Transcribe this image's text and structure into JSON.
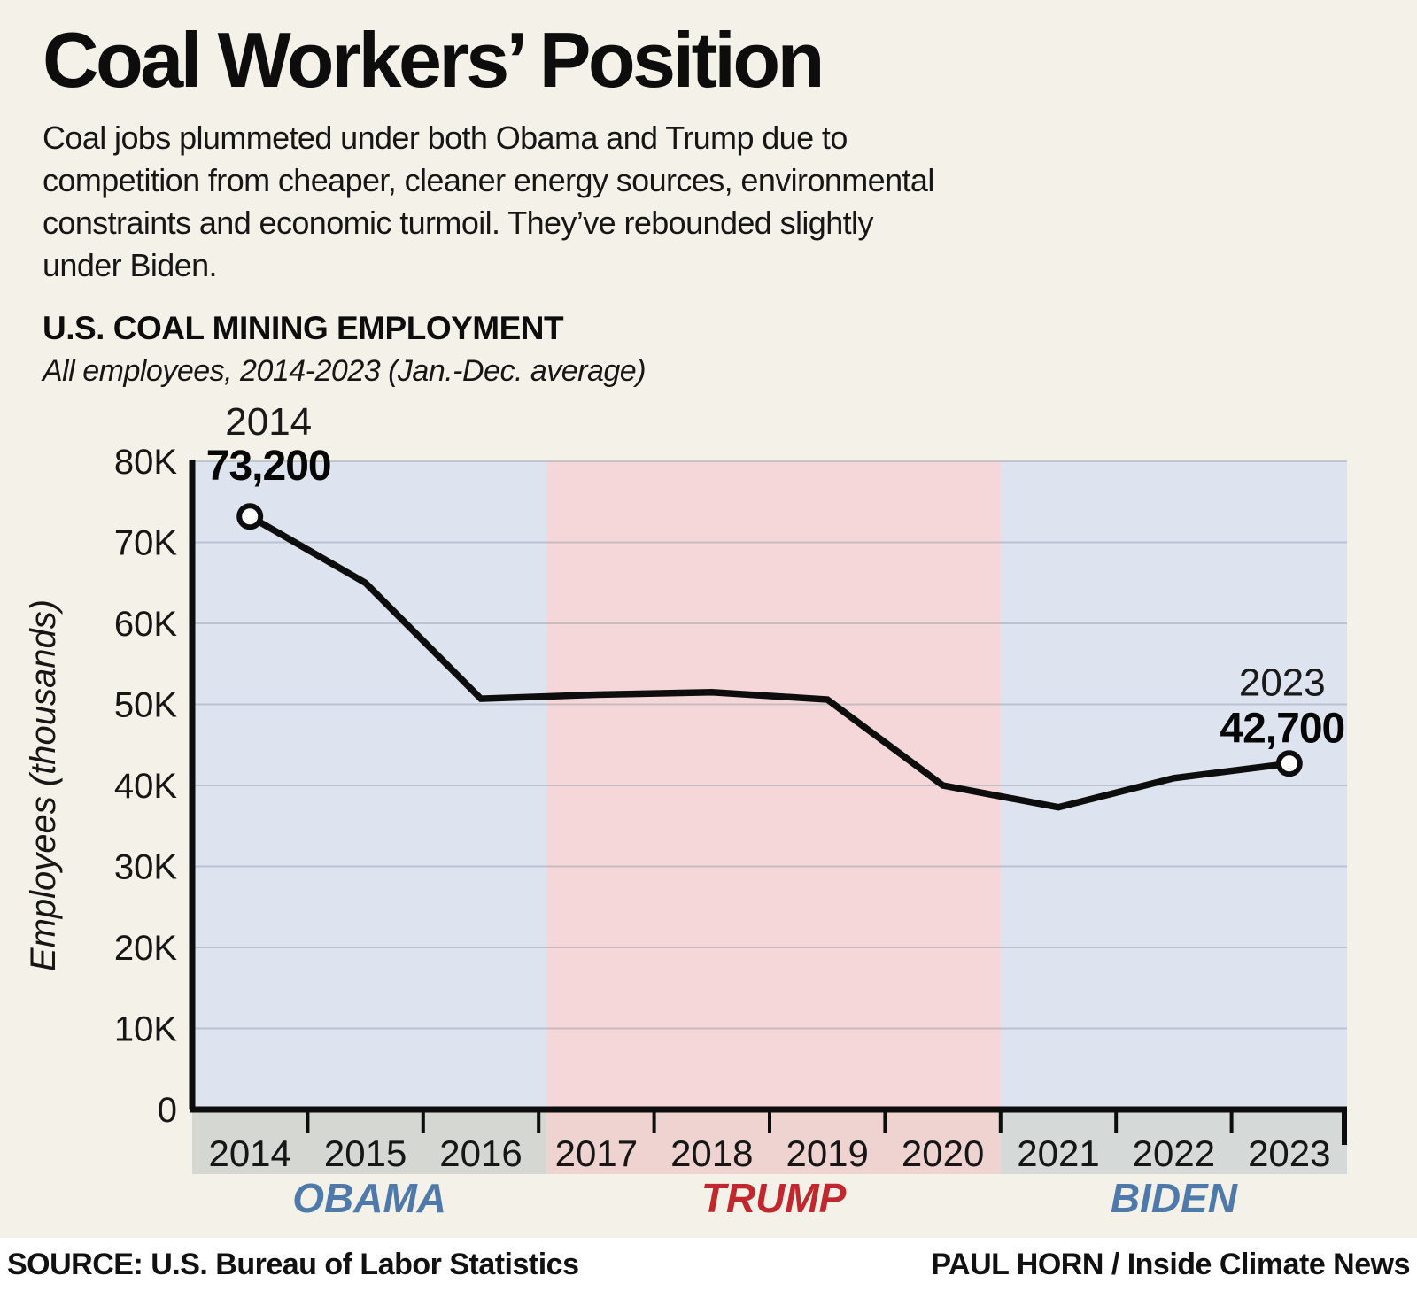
{
  "header": {
    "title": "Coal Workers’ Position",
    "description_lines": [
      "Coal jobs plummeted under both Obama and Trump due to",
      "competition from cheaper, cleaner energy sources, environmental",
      "constraints and economic turmoil. They’ve rebounded slightly",
      "under Biden."
    ]
  },
  "chart": {
    "heading": "U.S. COAL MINING EMPLOYMENT",
    "subheading": "All employees, 2014-2023 (Jan.-Dec. average)"
  },
  "chart_data": {
    "type": "line",
    "title": "U.S. COAL MINING EMPLOYMENT",
    "subtitle": "All employees, 2014-2023 (Jan.-Dec. average)",
    "categories": [
      "2014",
      "2015",
      "2016",
      "2017",
      "2018",
      "2019",
      "2020",
      "2021",
      "2022",
      "2023"
    ],
    "values": [
      73200,
      65000,
      50700,
      51200,
      51500,
      50600,
      40000,
      37300,
      40900,
      42700
    ],
    "xlabel": "",
    "ylabel": "Employees (thousands)",
    "ylim": [
      0,
      80000
    ],
    "ytick_interval": 10000,
    "ytick_labels": [
      "0",
      "10K",
      "20K",
      "30K",
      "40K",
      "50K",
      "60K",
      "70K",
      "80K"
    ],
    "grid": true,
    "legend": "none",
    "line_color": "#0d0d0d",
    "marker": {
      "fill": "#ffffff",
      "stroke": "#0d0d0d"
    },
    "point_labels": [
      {
        "index": 0,
        "year": "2014",
        "value": "73,200",
        "side": "left"
      },
      {
        "index": 9,
        "year": "2023",
        "value": "42,700",
        "side": "right"
      }
    ],
    "regions": [
      {
        "label": "OBAMA",
        "start_slot": 0,
        "end_slot": 3.07,
        "fill": "#dee3f0",
        "band_fill": "#d4d7d2",
        "label_color": "#4d79ab"
      },
      {
        "label": "TRUMP",
        "start_slot": 3.07,
        "end_slot": 7,
        "fill": "#f5d7d9",
        "band_fill": "#eed3d1",
        "label_color": "#c1272d"
      },
      {
        "label": "BIDEN",
        "start_slot": 7,
        "end_slot": 10,
        "fill": "#dee3f0",
        "band_fill": "#d5d9d8",
        "label_color": "#4d79ab"
      }
    ]
  },
  "footer": {
    "source": "SOURCE: U.S. Bureau of Labor Statistics",
    "credit": "PAUL HORN / Inside Climate News"
  },
  "colors": {
    "background": "#f4f2e8",
    "footer_background": "#ffffff",
    "gridline": "#9ba1ad",
    "axis": "#0d0d0d"
  }
}
